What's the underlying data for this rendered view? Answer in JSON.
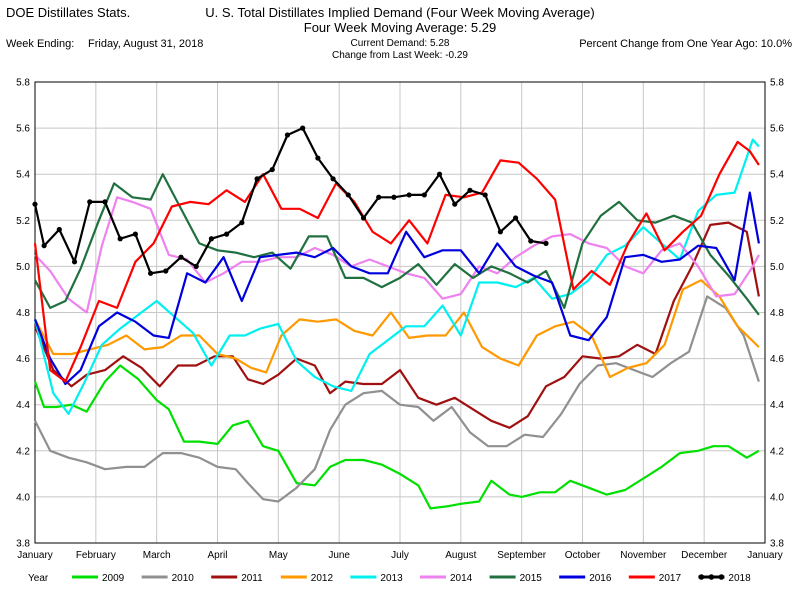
{
  "header": {
    "left_title": "DOE Distillates Stats.",
    "title": "U. S. Total Distillates Implied Demand  (Four Week Moving Average)",
    "subtitle": "Four Week Moving Average:  5.29",
    "week_ending_label": "Week Ending:",
    "week_ending_value": "Friday, August 31, 2018",
    "current_demand": "Current Demand:  5.28",
    "change_last_week": "Change from Last Week: -0.29",
    "percent_change": "Percent Change from One Year Ago:  10.0%"
  },
  "legend": {
    "label": "Year"
  },
  "chart_data": {
    "type": "line",
    "title": "U. S. Total Distillates Implied Demand  (Four Week Moving Average)",
    "xlabel": "",
    "ylabel": "",
    "ylim": [
      3.8,
      5.8
    ],
    "xlim": [
      0,
      12
    ],
    "y_ticks": [
      "3.8",
      "4.0",
      "4.2",
      "4.4",
      "4.6",
      "4.8",
      "5.0",
      "5.2",
      "5.4",
      "5.6",
      "5.8"
    ],
    "x_tick_labels": [
      "January",
      "February",
      "March",
      "April",
      "May",
      "June",
      "July",
      "August",
      "September",
      "October",
      "November",
      "December",
      "January"
    ],
    "grid": true,
    "legend_position": "bottom",
    "series": [
      {
        "name": "2009",
        "color": "#00e000",
        "marker": false,
        "x": [
          0,
          0.15,
          0.35,
          0.6,
          0.85,
          1.15,
          1.4,
          1.7,
          2.0,
          2.2,
          2.45,
          2.7,
          3.0,
          3.25,
          3.5,
          3.75,
          4.0,
          4.3,
          4.6,
          4.85,
          5.1,
          5.4,
          5.7,
          6.0,
          6.3,
          6.5,
          6.8,
          7.0,
          7.3,
          7.5,
          7.8,
          8.0,
          8.3,
          8.55,
          8.8,
          9.1,
          9.4,
          9.7,
          10.0,
          10.3,
          10.6,
          10.9,
          11.15,
          11.4,
          11.7,
          11.9
        ],
        "y": [
          4.5,
          4.39,
          4.39,
          4.4,
          4.37,
          4.5,
          4.57,
          4.51,
          4.42,
          4.38,
          4.24,
          4.24,
          4.23,
          4.31,
          4.33,
          4.22,
          4.2,
          4.06,
          4.05,
          4.13,
          4.16,
          4.16,
          4.14,
          4.1,
          4.05,
          3.95,
          3.96,
          3.97,
          3.98,
          4.07,
          4.01,
          4.0,
          4.02,
          4.02,
          4.07,
          4.04,
          4.01,
          4.03,
          4.08,
          4.13,
          4.19,
          4.2,
          4.22,
          4.22,
          4.17,
          4.2
        ]
      },
      {
        "name": "2010",
        "color": "#909090",
        "marker": false,
        "x": [
          0,
          0.25,
          0.55,
          0.85,
          1.15,
          1.5,
          1.8,
          2.1,
          2.4,
          2.7,
          3.0,
          3.3,
          3.5,
          3.75,
          4.0,
          4.3,
          4.6,
          4.85,
          5.1,
          5.4,
          5.7,
          6.0,
          6.3,
          6.55,
          6.85,
          7.15,
          7.45,
          7.75,
          8.05,
          8.35,
          8.65,
          8.95,
          9.25,
          9.55,
          9.85,
          10.15,
          10.45,
          10.75,
          11.05,
          11.35,
          11.65,
          11.9
        ],
        "y": [
          4.33,
          4.2,
          4.17,
          4.15,
          4.12,
          4.13,
          4.13,
          4.19,
          4.19,
          4.17,
          4.13,
          4.12,
          4.06,
          3.99,
          3.98,
          4.04,
          4.12,
          4.29,
          4.4,
          4.45,
          4.46,
          4.4,
          4.39,
          4.33,
          4.39,
          4.28,
          4.22,
          4.22,
          4.27,
          4.26,
          4.36,
          4.49,
          4.57,
          4.58,
          4.55,
          4.52,
          4.58,
          4.63,
          4.87,
          4.82,
          4.7,
          4.5
        ]
      },
      {
        "name": "2011",
        "color": "#a01010",
        "marker": false,
        "x": [
          0,
          0.3,
          0.6,
          0.85,
          1.15,
          1.45,
          1.75,
          2.05,
          2.35,
          2.65,
          2.95,
          3.25,
          3.5,
          3.75,
          4.0,
          4.3,
          4.6,
          4.85,
          5.1,
          5.4,
          5.7,
          6.0,
          6.3,
          6.6,
          6.9,
          7.2,
          7.5,
          7.8,
          8.1,
          8.4,
          8.7,
          9.0,
          9.3,
          9.6,
          9.9,
          10.2,
          10.5,
          10.8,
          11.1,
          11.4,
          11.7,
          11.9
        ],
        "y": [
          4.74,
          4.55,
          4.48,
          4.53,
          4.55,
          4.61,
          4.56,
          4.48,
          4.57,
          4.57,
          4.61,
          4.61,
          4.51,
          4.49,
          4.53,
          4.6,
          4.57,
          4.45,
          4.5,
          4.49,
          4.49,
          4.55,
          4.43,
          4.4,
          4.43,
          4.38,
          4.33,
          4.3,
          4.35,
          4.48,
          4.52,
          4.61,
          4.6,
          4.61,
          4.66,
          4.62,
          4.85,
          5.0,
          5.18,
          5.19,
          5.15,
          4.87
        ]
      },
      {
        "name": "2012",
        "color": "#ff9900",
        "marker": false,
        "x": [
          0,
          0.3,
          0.6,
          0.9,
          1.2,
          1.5,
          1.8,
          2.1,
          2.4,
          2.7,
          3.0,
          3.3,
          3.55,
          3.8,
          4.05,
          4.35,
          4.65,
          4.95,
          5.25,
          5.55,
          5.85,
          6.15,
          6.45,
          6.75,
          7.05,
          7.35,
          7.65,
          7.95,
          8.25,
          8.55,
          8.85,
          9.15,
          9.45,
          9.75,
          10.05,
          10.35,
          10.65,
          10.95,
          11.25,
          11.55,
          11.9
        ],
        "y": [
          4.77,
          4.62,
          4.62,
          4.64,
          4.66,
          4.7,
          4.64,
          4.65,
          4.7,
          4.7,
          4.62,
          4.6,
          4.56,
          4.54,
          4.7,
          4.77,
          4.76,
          4.77,
          4.72,
          4.7,
          4.8,
          4.69,
          4.7,
          4.7,
          4.8,
          4.65,
          4.6,
          4.57,
          4.7,
          4.74,
          4.76,
          4.7,
          4.52,
          4.56,
          4.58,
          4.66,
          4.9,
          4.94,
          4.87,
          4.74,
          4.65
        ]
      },
      {
        "name": "2013",
        "color": "#00f0f0",
        "marker": false,
        "x": [
          0,
          0.3,
          0.55,
          0.8,
          1.1,
          1.4,
          1.7,
          2.0,
          2.3,
          2.6,
          2.9,
          3.2,
          3.45,
          3.7,
          4.0,
          4.3,
          4.6,
          4.9,
          5.2,
          5.5,
          5.8,
          6.1,
          6.4,
          6.7,
          7.0,
          7.3,
          7.6,
          7.9,
          8.2,
          8.5,
          8.8,
          9.1,
          9.4,
          9.7,
          10.0,
          10.3,
          10.6,
          10.9,
          11.2,
          11.5,
          11.8,
          11.9
        ],
        "y": [
          4.77,
          4.45,
          4.36,
          4.49,
          4.66,
          4.73,
          4.79,
          4.85,
          4.78,
          4.71,
          4.57,
          4.7,
          4.7,
          4.73,
          4.75,
          4.59,
          4.52,
          4.48,
          4.46,
          4.62,
          4.68,
          4.74,
          4.74,
          4.83,
          4.7,
          4.93,
          4.93,
          4.91,
          4.95,
          4.86,
          4.88,
          4.94,
          5.05,
          5.09,
          5.17,
          5.1,
          5.03,
          5.24,
          5.31,
          5.32,
          5.55,
          5.52
        ]
      },
      {
        "name": "2014",
        "color": "#ee82ee",
        "marker": false,
        "x": [
          0,
          0.25,
          0.55,
          0.85,
          1.1,
          1.35,
          1.6,
          1.9,
          2.2,
          2.5,
          2.8,
          3.1,
          3.4,
          3.7,
          4.0,
          4.3,
          4.6,
          4.9,
          5.2,
          5.5,
          5.8,
          6.1,
          6.4,
          6.7,
          7.0,
          7.3,
          7.6,
          7.9,
          8.2,
          8.5,
          8.8,
          9.1,
          9.4,
          9.7,
          10.0,
          10.3,
          10.6,
          10.9,
          11.2,
          11.5,
          11.8,
          11.9
        ],
        "y": [
          5.05,
          4.98,
          4.86,
          4.8,
          5.09,
          5.3,
          5.28,
          5.25,
          5.05,
          5.03,
          4.93,
          4.97,
          5.02,
          5.02,
          5.04,
          5.04,
          5.08,
          5.05,
          5.0,
          5.03,
          5.0,
          4.97,
          4.95,
          4.86,
          4.88,
          5.0,
          4.97,
          5.04,
          5.09,
          5.13,
          5.14,
          5.1,
          5.08,
          5.0,
          4.97,
          5.07,
          5.1,
          5.0,
          4.87,
          4.88,
          5.0,
          5.05
        ]
      },
      {
        "name": "2015",
        "color": "#207040",
        "marker": false,
        "x": [
          0,
          0.25,
          0.5,
          0.75,
          1.05,
          1.3,
          1.6,
          1.9,
          2.1,
          2.4,
          2.7,
          3.0,
          3.3,
          3.6,
          3.9,
          4.2,
          4.5,
          4.8,
          5.1,
          5.4,
          5.7,
          6.0,
          6.3,
          6.6,
          6.9,
          7.2,
          7.5,
          7.8,
          8.1,
          8.4,
          8.7,
          9.0,
          9.3,
          9.6,
          9.9,
          10.2,
          10.5,
          10.8,
          11.1,
          11.4,
          11.7,
          11.9
        ],
        "y": [
          4.94,
          4.82,
          4.85,
          4.99,
          5.2,
          5.36,
          5.3,
          5.29,
          5.4,
          5.25,
          5.1,
          5.07,
          5.06,
          5.04,
          5.06,
          4.99,
          5.13,
          5.13,
          4.95,
          4.95,
          4.91,
          4.95,
          5.01,
          4.92,
          5.01,
          4.95,
          5.0,
          4.97,
          4.93,
          4.98,
          4.82,
          5.1,
          5.22,
          5.28,
          5.2,
          5.19,
          5.22,
          5.19,
          5.05,
          4.96,
          4.86,
          4.79
        ]
      },
      {
        "name": "2016",
        "color": "#0000dd",
        "marker": false,
        "x": [
          0,
          0.25,
          0.5,
          0.75,
          1.05,
          1.35,
          1.65,
          1.95,
          2.2,
          2.5,
          2.8,
          3.1,
          3.4,
          3.7,
          4.0,
          4.3,
          4.6,
          4.9,
          5.2,
          5.5,
          5.8,
          6.1,
          6.4,
          6.7,
          7.0,
          7.3,
          7.6,
          7.9,
          8.2,
          8.5,
          8.8,
          9.1,
          9.4,
          9.7,
          10.0,
          10.3,
          10.6,
          10.9,
          11.2,
          11.5,
          11.75,
          11.9
        ],
        "y": [
          4.77,
          4.6,
          4.49,
          4.55,
          4.74,
          4.8,
          4.76,
          4.7,
          4.69,
          4.97,
          4.93,
          5.04,
          4.85,
          5.04,
          5.05,
          5.06,
          5.04,
          5.08,
          5.0,
          4.97,
          4.97,
          5.15,
          5.04,
          5.07,
          5.07,
          4.97,
          5.1,
          5.0,
          4.96,
          4.93,
          4.7,
          4.68,
          4.78,
          5.04,
          5.05,
          5.02,
          5.03,
          5.09,
          5.08,
          4.94,
          5.32,
          5.1
        ]
      },
      {
        "name": "2017",
        "color": "#ff0000",
        "marker": false,
        "x": [
          0,
          0.25,
          0.5,
          0.75,
          1.05,
          1.35,
          1.65,
          1.95,
          2.25,
          2.55,
          2.85,
          3.15,
          3.45,
          3.75,
          4.05,
          4.35,
          4.65,
          4.95,
          5.25,
          5.55,
          5.85,
          6.15,
          6.45,
          6.75,
          7.05,
          7.35,
          7.65,
          7.95,
          8.25,
          8.55,
          8.85,
          9.15,
          9.45,
          9.75,
          10.05,
          10.35,
          10.65,
          10.95,
          11.25,
          11.55,
          11.75,
          11.9
        ],
        "y": [
          5.1,
          4.55,
          4.5,
          4.65,
          4.85,
          4.82,
          5.02,
          5.1,
          5.26,
          5.28,
          5.27,
          5.33,
          5.28,
          5.4,
          5.25,
          5.25,
          5.21,
          5.36,
          5.28,
          5.15,
          5.1,
          5.2,
          5.1,
          5.31,
          5.3,
          5.32,
          5.46,
          5.45,
          5.38,
          5.29,
          4.9,
          4.98,
          4.92,
          5.1,
          5.23,
          5.07,
          5.15,
          5.22,
          5.4,
          5.54,
          5.5,
          5.44
        ]
      },
      {
        "name": "2018",
        "color": "#000000",
        "marker": true,
        "x": [
          0,
          0.15,
          0.4,
          0.65,
          0.9,
          1.15,
          1.4,
          1.65,
          1.9,
          2.15,
          2.4,
          2.65,
          2.9,
          3.15,
          3.4,
          3.65,
          3.9,
          4.15,
          4.4,
          4.65,
          4.9,
          5.15,
          5.4,
          5.65,
          5.9,
          6.15,
          6.4,
          6.65,
          6.9,
          7.15,
          7.4,
          7.65,
          7.9,
          8.15,
          8.4
        ],
        "y": [
          5.27,
          5.09,
          5.16,
          5.02,
          5.28,
          5.28,
          5.12,
          5.14,
          4.97,
          4.98,
          5.04,
          5.0,
          5.12,
          5.14,
          5.19,
          5.38,
          5.42,
          5.57,
          5.6,
          5.47,
          5.38,
          5.31,
          5.21,
          5.3,
          5.3,
          5.31,
          5.31,
          5.4,
          5.27,
          5.33,
          5.31,
          5.15,
          5.21,
          5.11,
          5.1
        ]
      }
    ]
  }
}
